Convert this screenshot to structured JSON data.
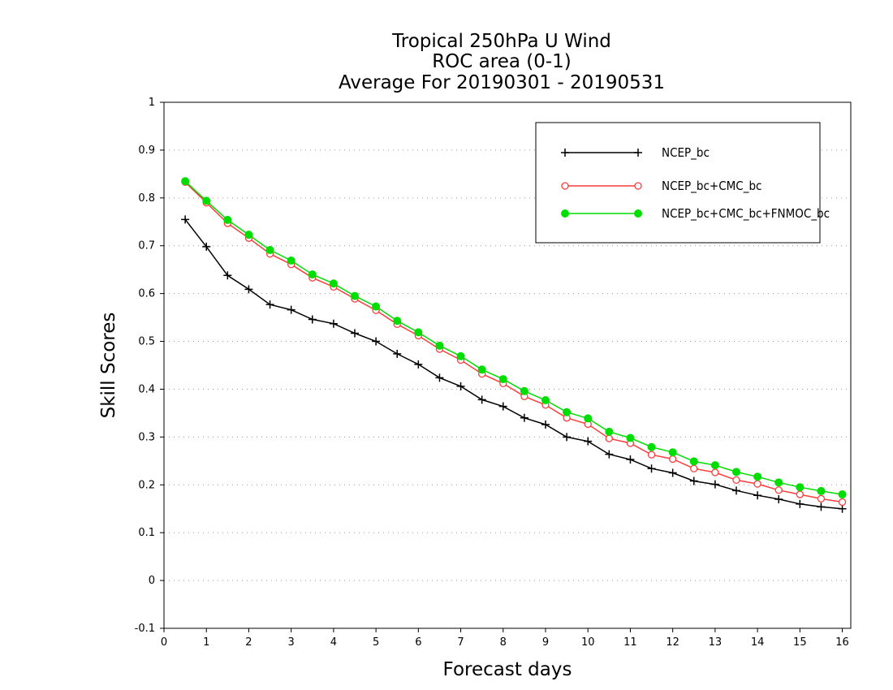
{
  "chart_data": {
    "type": "line",
    "title_lines": [
      "Tropical 250hPa U Wind",
      "ROC area (0-1)",
      "Average For 20190301 - 20190531"
    ],
    "xlabel": "Forecast days",
    "ylabel": "Skill Scores",
    "xlim": [
      0,
      16.2
    ],
    "ylim": [
      -0.1,
      1
    ],
    "xticks": [
      0,
      1,
      2,
      3,
      4,
      5,
      6,
      7,
      8,
      9,
      10,
      11,
      12,
      13,
      14,
      15,
      16
    ],
    "yticks": [
      -0.1,
      0,
      0.1,
      0.2,
      0.3,
      0.4,
      0.5,
      0.6,
      0.7,
      0.8,
      0.9,
      1
    ],
    "ytick_labels": [
      "-0.1",
      "0",
      "0.1",
      "0.2",
      "0.3",
      "0.4",
      "0.5",
      "0.6",
      "0.7",
      "0.8",
      "0.9",
      "1"
    ],
    "grid": "dotted-horizontal",
    "legend_position": "top-right",
    "x": [
      0.5,
      1,
      1.5,
      2,
      2.5,
      3,
      3.5,
      4,
      4.5,
      5,
      5.5,
      6,
      6.5,
      7,
      7.5,
      8,
      8.5,
      9,
      9.5,
      10,
      10.5,
      11,
      11.5,
      12,
      12.5,
      13,
      13.5,
      14,
      14.5,
      15,
      15.5,
      16
    ],
    "series": [
      {
        "name": "NCEP_bc",
        "color": "#000000",
        "marker": "plus",
        "values": [
          0.755,
          0.698,
          0.638,
          0.609,
          0.577,
          0.566,
          0.546,
          0.537,
          0.517,
          0.5,
          0.474,
          0.452,
          0.424,
          0.406,
          0.378,
          0.364,
          0.34,
          0.326,
          0.3,
          0.291,
          0.264,
          0.253,
          0.234,
          0.225,
          0.208,
          0.201,
          0.188,
          0.178,
          0.17,
          0.16,
          0.154,
          0.15
        ]
      },
      {
        "name": "NCEP_bc+CMC_bc",
        "color": "#ff3b3b",
        "marker": "open-circle",
        "values": [
          0.833,
          0.79,
          0.747,
          0.716,
          0.683,
          0.661,
          0.633,
          0.614,
          0.589,
          0.565,
          0.536,
          0.512,
          0.484,
          0.461,
          0.432,
          0.412,
          0.385,
          0.367,
          0.34,
          0.327,
          0.297,
          0.287,
          0.263,
          0.254,
          0.234,
          0.226,
          0.21,
          0.202,
          0.189,
          0.18,
          0.171,
          0.164
        ]
      },
      {
        "name": "NCEP_bc+CMC_bc+FNMOC_bc",
        "color": "#00dd00",
        "marker": "filled-circle",
        "values": [
          0.835,
          0.794,
          0.754,
          0.723,
          0.691,
          0.669,
          0.64,
          0.621,
          0.595,
          0.573,
          0.543,
          0.519,
          0.491,
          0.469,
          0.441,
          0.421,
          0.396,
          0.377,
          0.352,
          0.339,
          0.311,
          0.298,
          0.279,
          0.268,
          0.249,
          0.241,
          0.227,
          0.217,
          0.205,
          0.195,
          0.187,
          0.18
        ]
      }
    ]
  }
}
